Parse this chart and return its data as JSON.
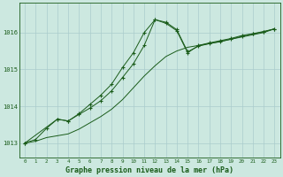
{
  "title": "Graphe pression niveau de la mer (hPa)",
  "bg_color": "#cce8e0",
  "grid_color": "#aacccc",
  "line_color": "#1a5c1a",
  "xlim": [
    -0.5,
    23.5
  ],
  "ylim": [
    1012.6,
    1016.8
  ],
  "yticks": [
    1013,
    1014,
    1015,
    1016
  ],
  "xticks": [
    0,
    1,
    2,
    3,
    4,
    5,
    6,
    7,
    8,
    9,
    10,
    11,
    12,
    13,
    14,
    15,
    16,
    17,
    18,
    19,
    20,
    21,
    22,
    23
  ],
  "series1_x": [
    0,
    1,
    2,
    3,
    4,
    5,
    6,
    7,
    8,
    9,
    10,
    11,
    12,
    13,
    14,
    15,
    16,
    17,
    18,
    19,
    20,
    21,
    22,
    23
  ],
  "series1_y": [
    1013.0,
    1013.1,
    1013.4,
    1013.65,
    1013.6,
    1013.8,
    1014.05,
    1014.3,
    1014.6,
    1015.05,
    1015.45,
    1016.0,
    1016.35,
    1016.25,
    1016.05,
    1015.45,
    1015.65,
    1015.72,
    1015.78,
    1015.84,
    1015.92,
    1015.97,
    1016.03,
    1016.1
  ],
  "series2_x": [
    0,
    1,
    2,
    3,
    4,
    5,
    6,
    7,
    8,
    9,
    10,
    11,
    12,
    13,
    14,
    15,
    16,
    17,
    18,
    19,
    20,
    21,
    22,
    23
  ],
  "series2_y": [
    1013.0,
    1013.05,
    1013.15,
    1013.2,
    1013.25,
    1013.38,
    1013.55,
    1013.72,
    1013.92,
    1014.18,
    1014.5,
    1014.82,
    1015.1,
    1015.35,
    1015.5,
    1015.6,
    1015.65,
    1015.7,
    1015.75,
    1015.82,
    1015.88,
    1015.94,
    1016.0,
    1016.1
  ],
  "series3_x": [
    0,
    3,
    4,
    5,
    6,
    7,
    8,
    9,
    10,
    11,
    12,
    13,
    14,
    15,
    16,
    17,
    18,
    19,
    20,
    21,
    22,
    23
  ],
  "series3_y": [
    1013.0,
    1013.65,
    1013.6,
    1013.78,
    1013.95,
    1014.15,
    1014.42,
    1014.78,
    1015.15,
    1015.65,
    1016.35,
    1016.28,
    1016.08,
    1015.48,
    1015.63,
    1015.7,
    1015.76,
    1015.82,
    1015.9,
    1015.96,
    1016.02,
    1016.1
  ]
}
